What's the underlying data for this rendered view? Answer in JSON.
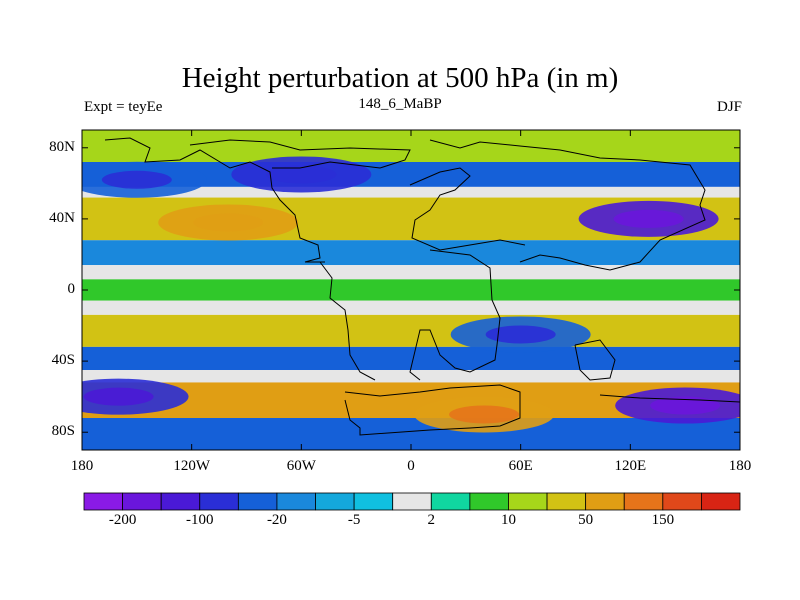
{
  "chart_data": {
    "type": "heatmap",
    "title": "Height perturbation at 500 hPa (in m)",
    "left_label": "Expt = teyEe",
    "center_label": "148_6_MaBP",
    "right_label": "DJF",
    "x_range": [
      -180,
      180
    ],
    "y_range": [
      -90,
      90
    ],
    "x_ticks": [
      {
        "value": -180,
        "label": "180"
      },
      {
        "value": -120,
        "label": "120W"
      },
      {
        "value": -60,
        "label": "60W"
      },
      {
        "value": 0,
        "label": "0"
      },
      {
        "value": 60,
        "label": "60E"
      },
      {
        "value": 120,
        "label": "120E"
      },
      {
        "value": 180,
        "label": "180"
      }
    ],
    "y_ticks": [
      {
        "value": 80,
        "label": "80N"
      },
      {
        "value": 40,
        "label": "40N"
      },
      {
        "value": 0,
        "label": "0"
      },
      {
        "value": -40,
        "label": "40S"
      },
      {
        "value": -80,
        "label": "80S"
      }
    ],
    "colorbar": {
      "colors": [
        "#8a1ae6",
        "#6a16dc",
        "#4a19d6",
        "#2a2ed6",
        "#1560d8",
        "#1a88dc",
        "#14a8dc",
        "#10c0e0",
        "#e6e6e6",
        "#10d6a0",
        "#30c82a",
        "#a6d61a",
        "#d2c214",
        "#e09e14",
        "#e6741a",
        "#e0481a",
        "#d82414"
      ],
      "labels": [
        {
          "after_box": 1,
          "label": "-200"
        },
        {
          "after_box": 3,
          "label": "-100"
        },
        {
          "after_box": 5,
          "label": "-20"
        },
        {
          "after_box": 7,
          "label": "-5"
        },
        {
          "after_box": 9,
          "label": "2"
        },
        {
          "after_box": 11,
          "label": "10"
        },
        {
          "after_box": 13,
          "label": "50"
        },
        {
          "after_box": 15,
          "label": "150"
        }
      ]
    },
    "bands": [
      {
        "lat": [
          90,
          72
        ],
        "value": 15
      },
      {
        "lat": [
          72,
          58
        ],
        "value": -30
      },
      {
        "lat": [
          58,
          52
        ],
        "value": 2
      },
      {
        "lat": [
          52,
          28
        ],
        "value": 40
      },
      {
        "lat": [
          28,
          14
        ],
        "value": -15
      },
      {
        "lat": [
          14,
          6
        ],
        "value": 1
      },
      {
        "lat": [
          6,
          -6
        ],
        "value": 8
      },
      {
        "lat": [
          -6,
          -14
        ],
        "value": 1
      },
      {
        "lat": [
          -14,
          -32
        ],
        "value": 30
      },
      {
        "lat": [
          -32,
          -45
        ],
        "value": -30
      },
      {
        "lat": [
          -45,
          -52
        ],
        "value": 2
      },
      {
        "lat": [
          -52,
          -72
        ],
        "value": 60
      },
      {
        "lat": [
          -72,
          -90
        ],
        "value": -40
      }
    ],
    "anomalies": [
      {
        "lon": -150,
        "lat": 62,
        "value": -35
      },
      {
        "lon": -60,
        "lat": 65,
        "value": -60
      },
      {
        "lon": 130,
        "lat": 40,
        "value": -120
      },
      {
        "lon": -100,
        "lat": 38,
        "value": 60
      },
      {
        "lon": 40,
        "lat": -70,
        "value": 80
      },
      {
        "lon": -160,
        "lat": -60,
        "value": -80
      },
      {
        "lon": 150,
        "lat": -65,
        "value": -100
      },
      {
        "lon": 60,
        "lat": -25,
        "value": -40
      }
    ]
  }
}
